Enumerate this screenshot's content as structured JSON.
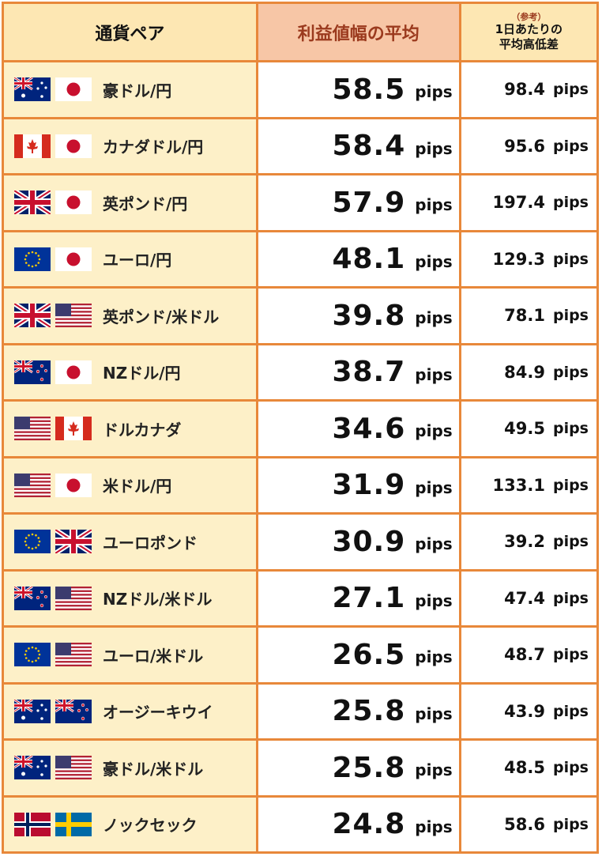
{
  "headers": {
    "pair": "通貨ペア",
    "average": "利益値幅の平均",
    "reference": "（参考）",
    "range_line1": "1日あたりの",
    "range_line2": "平均高低差"
  },
  "unit": "pips",
  "rows": [
    {
      "flags": [
        "au",
        "jp"
      ],
      "pair": "豪ドル/円",
      "average": "58.5",
      "range": "98.4"
    },
    {
      "flags": [
        "ca",
        "jp"
      ],
      "pair": "カナダドル/円",
      "average": "58.4",
      "range": "95.6"
    },
    {
      "flags": [
        "gb",
        "jp"
      ],
      "pair": "英ポンド/円",
      "average": "57.9",
      "range": "197.4"
    },
    {
      "flags": [
        "eu",
        "jp"
      ],
      "pair": "ユーロ/円",
      "average": "48.1",
      "range": "129.3"
    },
    {
      "flags": [
        "gb",
        "us"
      ],
      "pair": "英ポンド/米ドル",
      "average": "39.8",
      "range": "78.1"
    },
    {
      "flags": [
        "nz",
        "jp"
      ],
      "pair": "NZドル/円",
      "average": "38.7",
      "range": "84.9"
    },
    {
      "flags": [
        "us",
        "ca"
      ],
      "pair": "ドルカナダ",
      "average": "34.6",
      "range": "49.5"
    },
    {
      "flags": [
        "us",
        "jp"
      ],
      "pair": "米ドル/円",
      "average": "31.9",
      "range": "133.1"
    },
    {
      "flags": [
        "eu",
        "gb"
      ],
      "pair": "ユーロポンド",
      "average": "30.9",
      "range": "39.2"
    },
    {
      "flags": [
        "nz",
        "us"
      ],
      "pair": "NZドル/米ドル",
      "average": "27.1",
      "range": "47.4"
    },
    {
      "flags": [
        "eu",
        "us"
      ],
      "pair": "ユーロ/米ドル",
      "average": "26.5",
      "range": "48.7"
    },
    {
      "flags": [
        "au",
        "nz"
      ],
      "pair": "オージーキウイ",
      "average": "25.8",
      "range": "43.9"
    },
    {
      "flags": [
        "au",
        "us"
      ],
      "pair": "豪ドル/米ドル",
      "average": "25.8",
      "range": "48.5"
    },
    {
      "flags": [
        "no",
        "se"
      ],
      "pair": "ノックセック",
      "average": "24.8",
      "range": "58.6"
    }
  ],
  "colors": {
    "border": "#e8883a",
    "pair_bg": "#fdf0c8",
    "avg_header_bg": "#f7c6a6",
    "avg_header_text": "#9b3a1e"
  }
}
